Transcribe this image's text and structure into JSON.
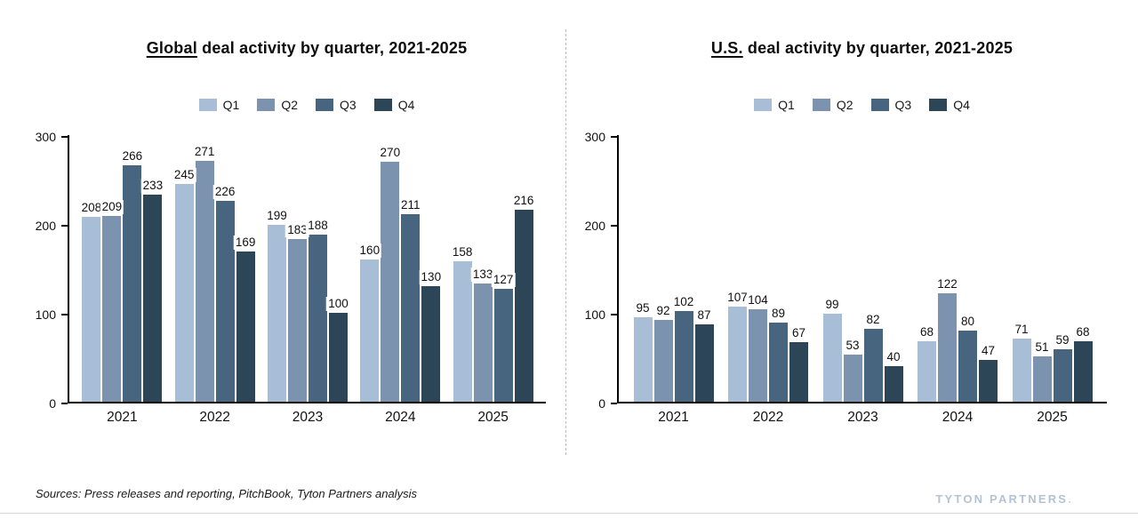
{
  "brand": {
    "name": "TYTON PARTNERS",
    "dot": "."
  },
  "footer": {
    "sources": "Sources: Press releases and reporting, PitchBook, Tyton Partners analysis"
  },
  "colors": {
    "q1": "#a8bed7",
    "q2": "#7b93ae",
    "q3": "#47657f",
    "q4": "#2c4658",
    "axis": "#000000",
    "divider": "#bcbcbc",
    "logo": "#b4c3d2"
  },
  "chart_data": [
    {
      "id": "global",
      "type": "bar",
      "title_emphasis": "Global",
      "title_rest": " deal activity by quarter, 2021-2025",
      "categories": [
        "2021",
        "2022",
        "2023",
        "2024",
        "2025"
      ],
      "series": [
        {
          "name": "Q1",
          "color": "#a8bed7",
          "values": [
            208,
            245,
            199,
            160,
            158
          ]
        },
        {
          "name": "Q2",
          "color": "#7b93ae",
          "values": [
            209,
            271,
            183,
            270,
            133
          ]
        },
        {
          "name": "Q3",
          "color": "#47657f",
          "values": [
            266,
            226,
            188,
            211,
            127
          ]
        },
        {
          "name": "Q4",
          "color": "#2c4658",
          "values": [
            233,
            169,
            100,
            130,
            216
          ]
        }
      ],
      "ylim": [
        0,
        300
      ],
      "yticks": [
        0,
        100,
        200,
        300
      ],
      "grid": false,
      "legend_position": "top"
    },
    {
      "id": "us",
      "type": "bar",
      "title_emphasis": "U.S.",
      "title_rest": " deal activity by quarter, 2021-2025",
      "categories": [
        "2021",
        "2022",
        "2023",
        "2024",
        "2025"
      ],
      "series": [
        {
          "name": "Q1",
          "color": "#a8bed7",
          "values": [
            95,
            107,
            99,
            68,
            71
          ]
        },
        {
          "name": "Q2",
          "color": "#7b93ae",
          "values": [
            92,
            104,
            53,
            122,
            51
          ]
        },
        {
          "name": "Q3",
          "color": "#47657f",
          "values": [
            102,
            89,
            82,
            80,
            59
          ]
        },
        {
          "name": "Q4",
          "color": "#2c4658",
          "values": [
            87,
            67,
            40,
            47,
            68
          ]
        }
      ],
      "ylim": [
        0,
        300
      ],
      "yticks": [
        0,
        100,
        200,
        300
      ],
      "grid": false,
      "legend_position": "top"
    }
  ]
}
